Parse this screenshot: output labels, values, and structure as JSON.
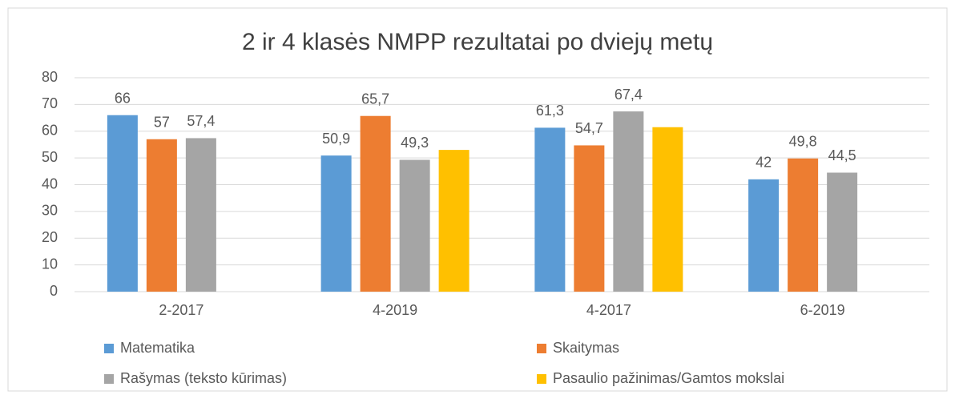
{
  "chart_data": {
    "type": "bar",
    "title": "2 ir 4 klasės NMPP rezultatai po dviejų metų",
    "categories": [
      "2-2017",
      "4-2019",
      "4-2017",
      "6-2019"
    ],
    "series": [
      {
        "name": "Matematika",
        "color": "#5b9bd5",
        "values": [
          66,
          50.9,
          61.3,
          42
        ],
        "value_labels": [
          "66",
          "50,9",
          "61,3",
          "42"
        ]
      },
      {
        "name": "Skaitymas",
        "color": "#ed7d31",
        "values": [
          57,
          65.7,
          54.7,
          49.8
        ],
        "value_labels": [
          "57",
          "65,7",
          "54,7",
          "49,8"
        ]
      },
      {
        "name": "Rašymas (teksto kūrimas)",
        "color": "#a5a5a5",
        "values": [
          57.4,
          49.3,
          67.4,
          44.5
        ],
        "value_labels": [
          "57,4",
          "49,3",
          "67,4",
          "44,5"
        ]
      },
      {
        "name": "Pasaulio pažinimas/Gamtos mokslai",
        "color": "#ffc000",
        "values": [
          null,
          53,
          61.5,
          null
        ]
      }
    ],
    "ylim": [
      0,
      80
    ],
    "yticks": [
      0,
      10,
      20,
      30,
      40,
      50,
      60,
      70,
      80
    ],
    "grid": true,
    "legend": "bottom"
  }
}
